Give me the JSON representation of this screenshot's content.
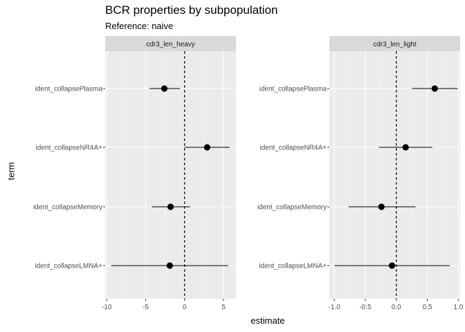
{
  "chart_data": {
    "type": "scatter",
    "title": "BCR properties by subpopulation",
    "subtitle": "Reference: naive",
    "xlabel": "estimate",
    "ylabel": "term",
    "terms": [
      "ident_collapsePlasma",
      "ident_collapseNR4A+",
      "ident_collapseMemory",
      "ident_collapseLMNA+"
    ],
    "panels": [
      {
        "strip": "cdr3_len_heavy",
        "xlim": [
          -10.2,
          6.6
        ],
        "xticks": [
          -10,
          -5,
          0,
          5
        ],
        "xtick_labels": [
          "-10",
          "-5",
          "0",
          "5"
        ],
        "points": [
          {
            "term": "ident_collapsePlasma",
            "estimate": -2.6,
            "lo": -4.5,
            "hi": -0.6
          },
          {
            "term": "ident_collapseNR4A+",
            "estimate": 2.9,
            "lo": 0.0,
            "hi": 5.8
          },
          {
            "term": "ident_collapseMemory",
            "estimate": -1.8,
            "lo": -4.2,
            "hi": 0.7
          },
          {
            "term": "ident_collapseLMNA+",
            "estimate": -1.9,
            "lo": -9.4,
            "hi": 5.6
          }
        ]
      },
      {
        "strip": "cdr3_len_light",
        "xlim": [
          -1.08,
          1.03
        ],
        "xticks": [
          -1.0,
          -0.5,
          0.0,
          0.5,
          1.0
        ],
        "xtick_labels": [
          "-1.0",
          "-0.5",
          "0.0",
          "0.5",
          "1.0"
        ],
        "points": [
          {
            "term": "ident_collapsePlasma",
            "estimate": 0.62,
            "lo": 0.25,
            "hi": 0.99
          },
          {
            "term": "ident_collapseNR4A+",
            "estimate": 0.15,
            "lo": -0.28,
            "hi": 0.58
          },
          {
            "term": "ident_collapseMemory",
            "estimate": -0.24,
            "lo": -0.77,
            "hi": 0.31
          },
          {
            "term": "ident_collapseLMNA+",
            "estimate": -0.07,
            "lo": -1.0,
            "hi": 0.86
          }
        ]
      }
    ],
    "reference_line": 0,
    "grid": true,
    "legend": "none"
  }
}
